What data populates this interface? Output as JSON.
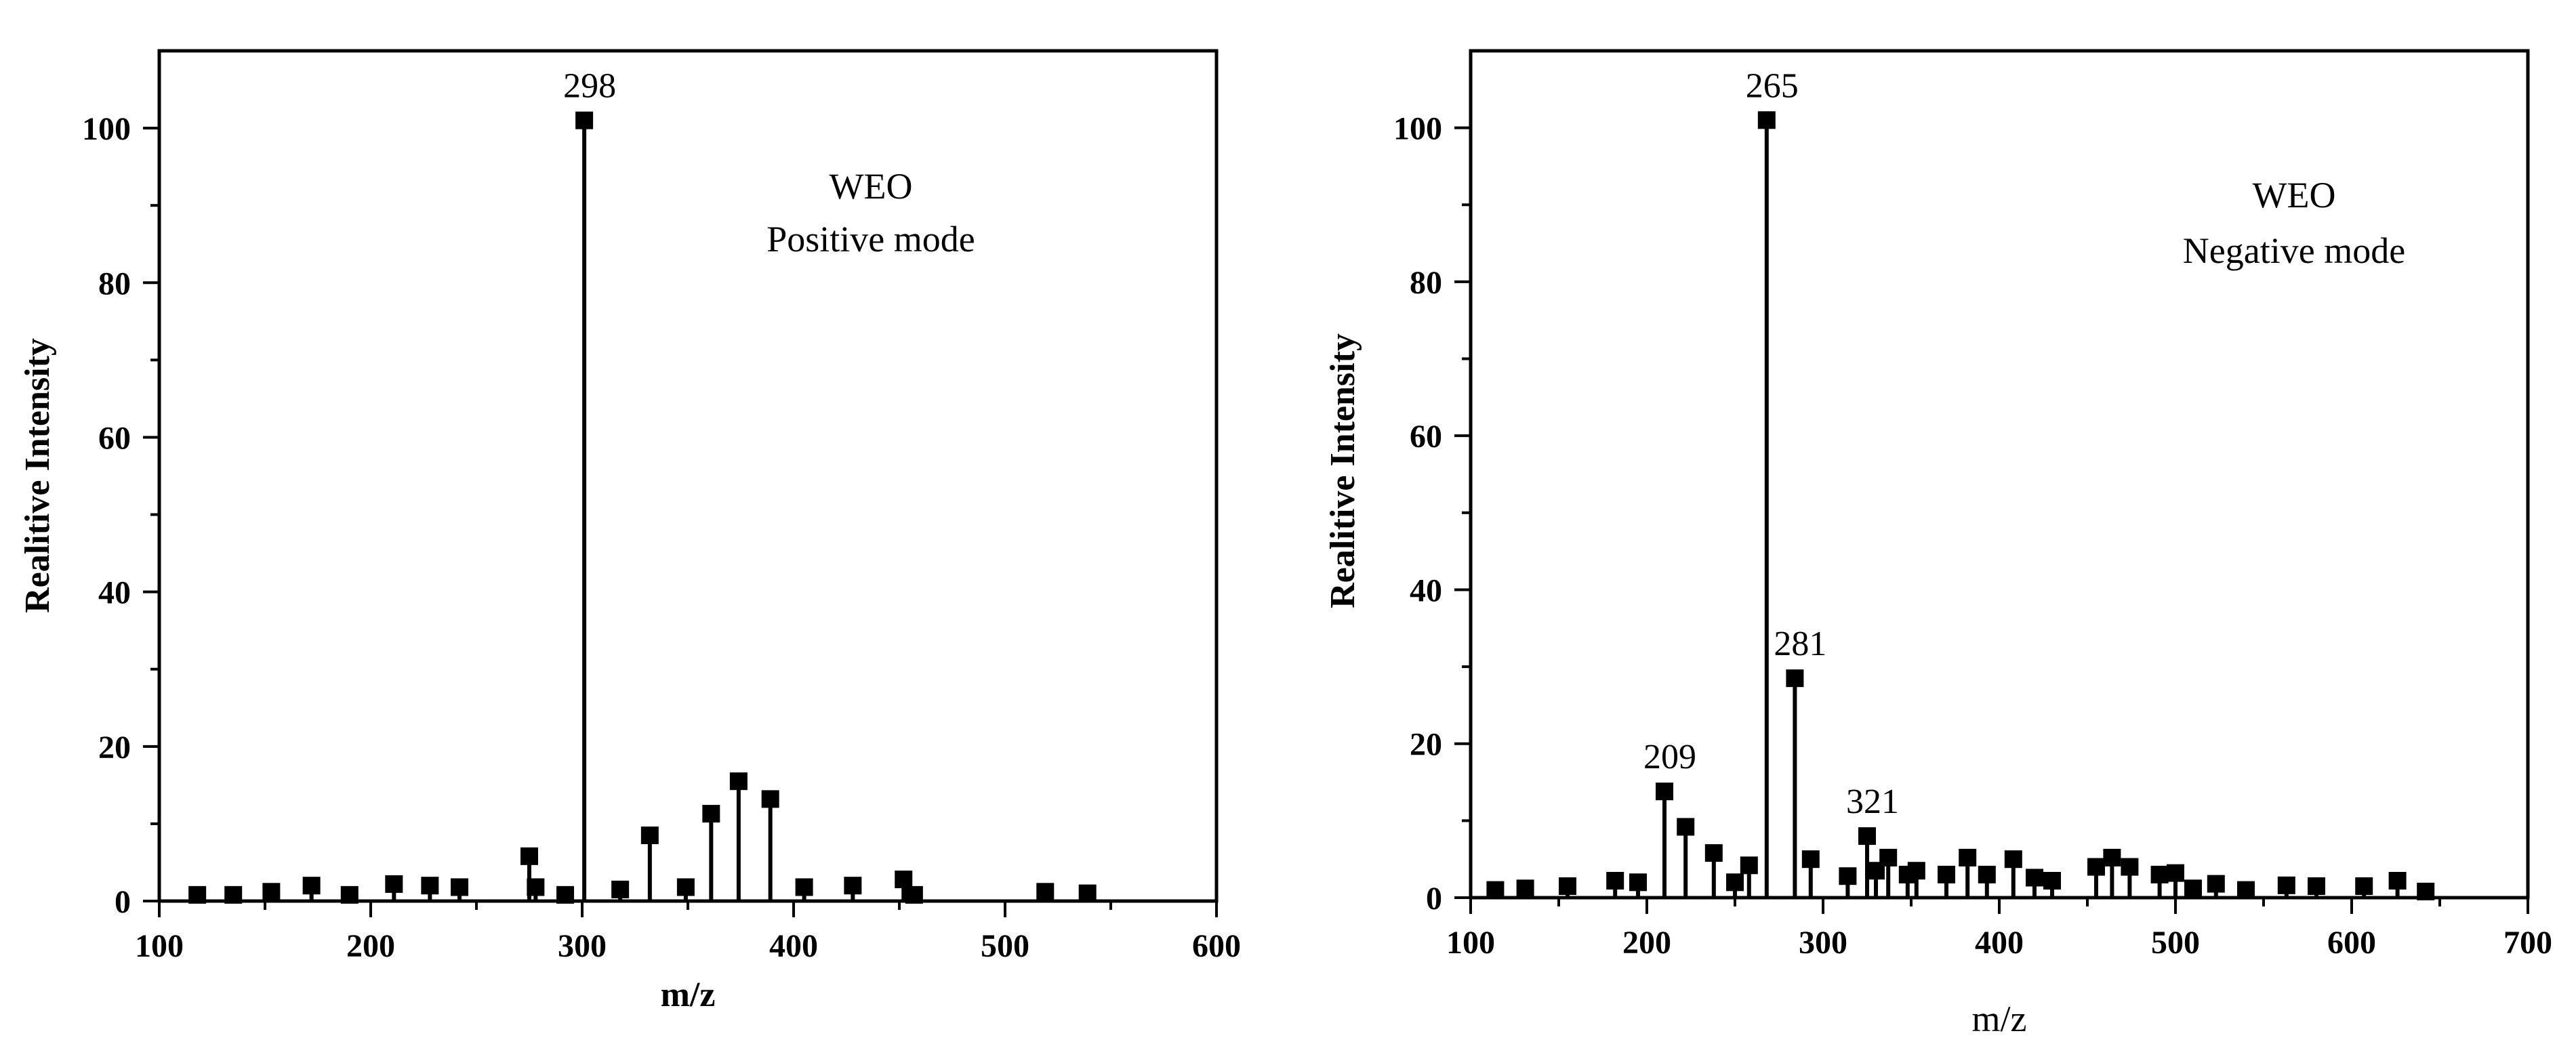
{
  "chart_data": [
    {
      "type": "stem",
      "title": "",
      "xlabel": "m/z",
      "ylabel": "Realitive Intensity",
      "xlim": [
        100,
        600
      ],
      "ylim": [
        0,
        110
      ],
      "xticks": [
        "100",
        "200",
        "300",
        "400",
        "500",
        "600"
      ],
      "yticks": [
        "0",
        "20",
        "40",
        "60",
        "80",
        "100"
      ],
      "annotation_lines": [
        "WEO",
        "Positive mode"
      ],
      "peak_labels": [
        {
          "text": "298",
          "x": 301,
          "y": 101
        }
      ],
      "series": [
        {
          "name": "WEO positive mode",
          "x": [
            118,
            135,
            153,
            172,
            190,
            211,
            228,
            242,
            275,
            278,
            292,
            318,
            332,
            349,
            361,
            374,
            389,
            405,
            428,
            452,
            457,
            519,
            539,
            301
          ],
          "y": [
            0.8,
            0.8,
            1.2,
            2.0,
            0.8,
            2.2,
            2.0,
            1.8,
            5.8,
            1.8,
            0.8,
            1.5,
            8.5,
            1.8,
            11.3,
            15.5,
            13.2,
            1.8,
            2.0,
            2.8,
            0.8,
            1.2,
            1.0,
            101
          ]
        }
      ]
    },
    {
      "type": "stem",
      "title": "",
      "xlabel": "m/z",
      "ylabel": "Realitive Intensity",
      "xlim": [
        100,
        700
      ],
      "ylim": [
        0,
        110
      ],
      "xticks": [
        "100",
        "200",
        "300",
        "400",
        "500",
        "600",
        "700"
      ],
      "yticks": [
        "0",
        "20",
        "40",
        "60",
        "80",
        "100"
      ],
      "annotation_lines": [
        "WEO",
        "Negative mode"
      ],
      "peak_labels": [
        {
          "text": "265",
          "x": 268,
          "y": 101
        },
        {
          "text": "281",
          "x": 284,
          "y": 28.5
        },
        {
          "text": "209",
          "x": 210,
          "y": 13.8
        },
        {
          "text": "321",
          "x": 325,
          "y": 8.0
        }
      ],
      "series": [
        {
          "name": "WEO negative mode",
          "x": [
            114,
            131,
            155,
            182,
            195,
            210,
            222,
            238,
            250,
            258,
            268,
            284,
            293,
            314,
            325,
            330,
            337,
            348,
            353,
            370,
            382,
            393,
            408,
            420,
            430,
            455,
            464,
            474,
            491,
            500,
            510,
            523,
            540,
            563,
            580,
            607,
            626,
            642
          ],
          "y": [
            1.0,
            1.2,
            1.5,
            2.2,
            2.0,
            13.8,
            9.2,
            5.8,
            2.0,
            4.2,
            101,
            28.5,
            5.0,
            2.8,
            8.0,
            3.5,
            5.2,
            3.0,
            3.5,
            3.0,
            5.2,
            3.0,
            5.0,
            2.6,
            2.2,
            4.0,
            5.2,
            4.0,
            3.0,
            3.2,
            1.2,
            1.8,
            1.0,
            1.6,
            1.5,
            1.5,
            2.2,
            0.8
          ]
        }
      ]
    }
  ]
}
